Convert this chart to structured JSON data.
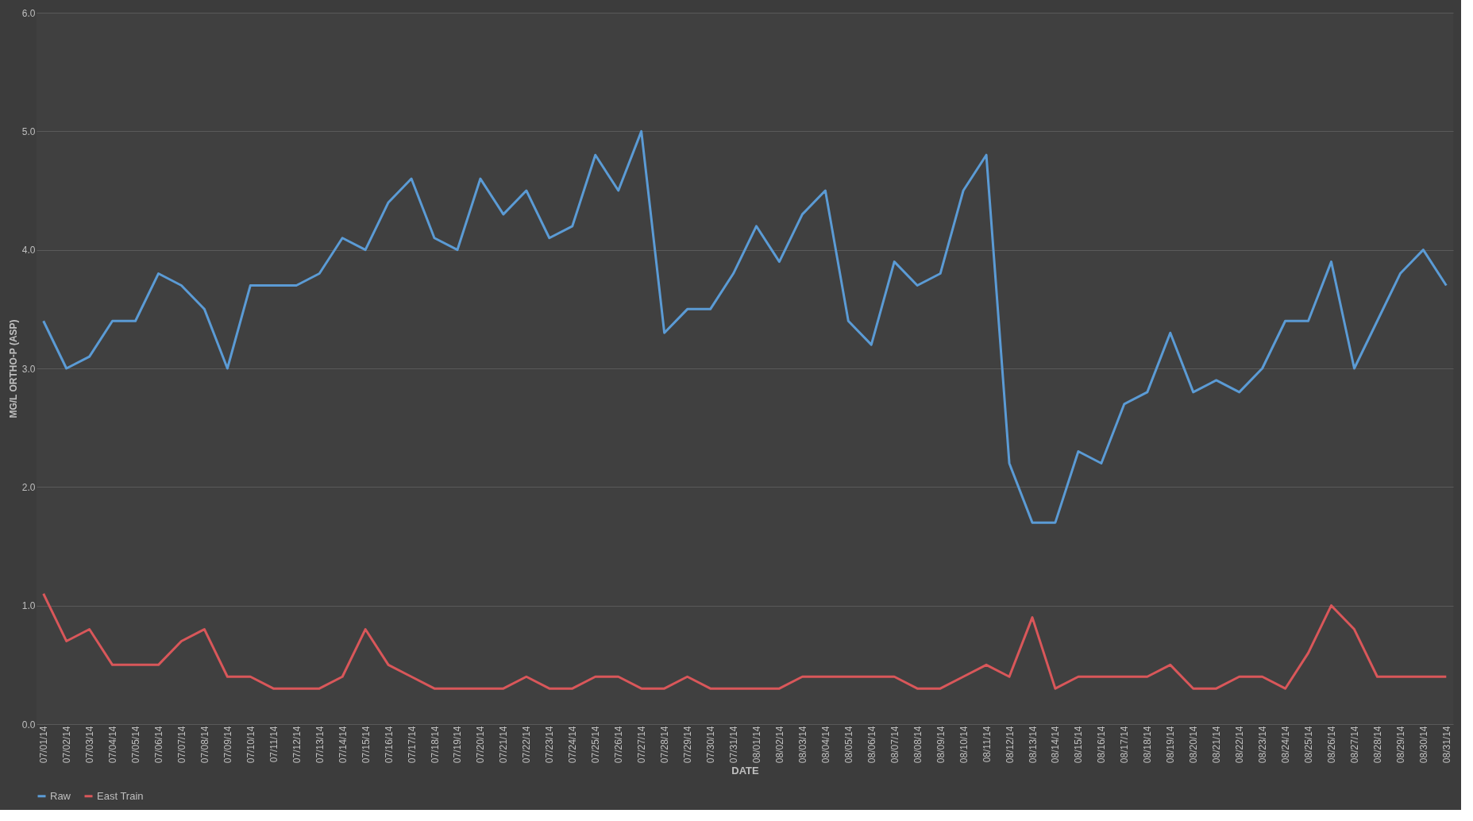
{
  "chart_data": {
    "type": "line",
    "xlabel": "DATE",
    "ylabel": "MG/L ORTHO-P (ASP)",
    "categories": [
      "07/01/14",
      "07/02/14",
      "07/03/14",
      "07/04/14",
      "07/05/14",
      "07/06/14",
      "07/07/14",
      "07/08/14",
      "07/09/14",
      "07/10/14",
      "07/11/14",
      "07/12/14",
      "07/13/14",
      "07/14/14",
      "07/15/14",
      "07/16/14",
      "07/17/14",
      "07/18/14",
      "07/19/14",
      "07/20/14",
      "07/21/14",
      "07/22/14",
      "07/23/14",
      "07/24/14",
      "07/25/14",
      "07/26/14",
      "07/27/14",
      "07/28/14",
      "07/29/14",
      "07/30/14",
      "07/31/14",
      "08/01/14",
      "08/02/14",
      "08/03/14",
      "08/04/14",
      "08/05/14",
      "08/06/14",
      "08/07/14",
      "08/08/14",
      "08/09/14",
      "08/10/14",
      "08/11/14",
      "08/12/14",
      "08/13/14",
      "08/14/14",
      "08/15/14",
      "08/16/14",
      "08/17/14",
      "08/18/14",
      "08/19/14",
      "08/20/14",
      "08/21/14",
      "08/22/14",
      "08/23/14",
      "08/24/14",
      "08/25/14",
      "08/26/14",
      "08/27/14",
      "08/28/14",
      "08/29/14",
      "08/30/14",
      "08/31/14"
    ],
    "series": [
      {
        "name": "Raw",
        "color": "#5b9bd5",
        "values": [
          3.4,
          3.0,
          3.1,
          3.4,
          3.4,
          3.8,
          3.7,
          3.5,
          3.0,
          3.7,
          3.7,
          3.7,
          3.8,
          4.1,
          4.0,
          4.4,
          4.6,
          4.1,
          4.0,
          4.6,
          4.3,
          4.5,
          4.1,
          4.2,
          4.8,
          4.5,
          5.0,
          3.3,
          3.5,
          3.5,
          3.8,
          4.2,
          3.9,
          4.3,
          4.5,
          3.4,
          3.2,
          3.9,
          3.7,
          3.8,
          4.5,
          4.8,
          2.2,
          1.7,
          1.7,
          2.3,
          2.2,
          2.7,
          2.8,
          3.3,
          2.8,
          2.9,
          2.8,
          3.0,
          3.4,
          3.4,
          3.9,
          3.0,
          3.4,
          3.8,
          4.0,
          3.7
        ]
      },
      {
        "name": "East Train",
        "color": "#d9575a",
        "values": [
          1.1,
          0.7,
          0.8,
          0.5,
          0.5,
          0.5,
          0.7,
          0.8,
          0.4,
          0.4,
          0.3,
          0.3,
          0.3,
          0.4,
          0.8,
          0.5,
          0.4,
          0.3,
          0.3,
          0.3,
          0.3,
          0.4,
          0.3,
          0.3,
          0.4,
          0.4,
          0.3,
          0.3,
          0.4,
          0.3,
          0.3,
          0.3,
          0.3,
          0.4,
          0.4,
          0.4,
          0.4,
          0.4,
          0.3,
          0.3,
          0.4,
          0.5,
          0.4,
          0.9,
          0.3,
          0.4,
          0.4,
          0.4,
          0.4,
          0.5,
          0.3,
          0.3,
          0.4,
          0.4,
          0.3,
          0.6,
          1.0,
          0.8,
          0.4,
          0.4,
          0.4,
          0.4
        ]
      }
    ],
    "ylim": [
      0,
      6
    ],
    "yticks": [
      {
        "value": 0,
        "label": "0.0"
      },
      {
        "value": 1,
        "label": "1.0"
      },
      {
        "value": 2,
        "label": "2.0"
      },
      {
        "value": 3,
        "label": "3.0"
      },
      {
        "value": 4,
        "label": "4.0"
      },
      {
        "value": 5,
        "label": "5.0"
      },
      {
        "value": 6,
        "label": "6.0"
      }
    ],
    "grid": "y",
    "legend": "bottom",
    "marker": "none",
    "line_style": "solid"
  }
}
